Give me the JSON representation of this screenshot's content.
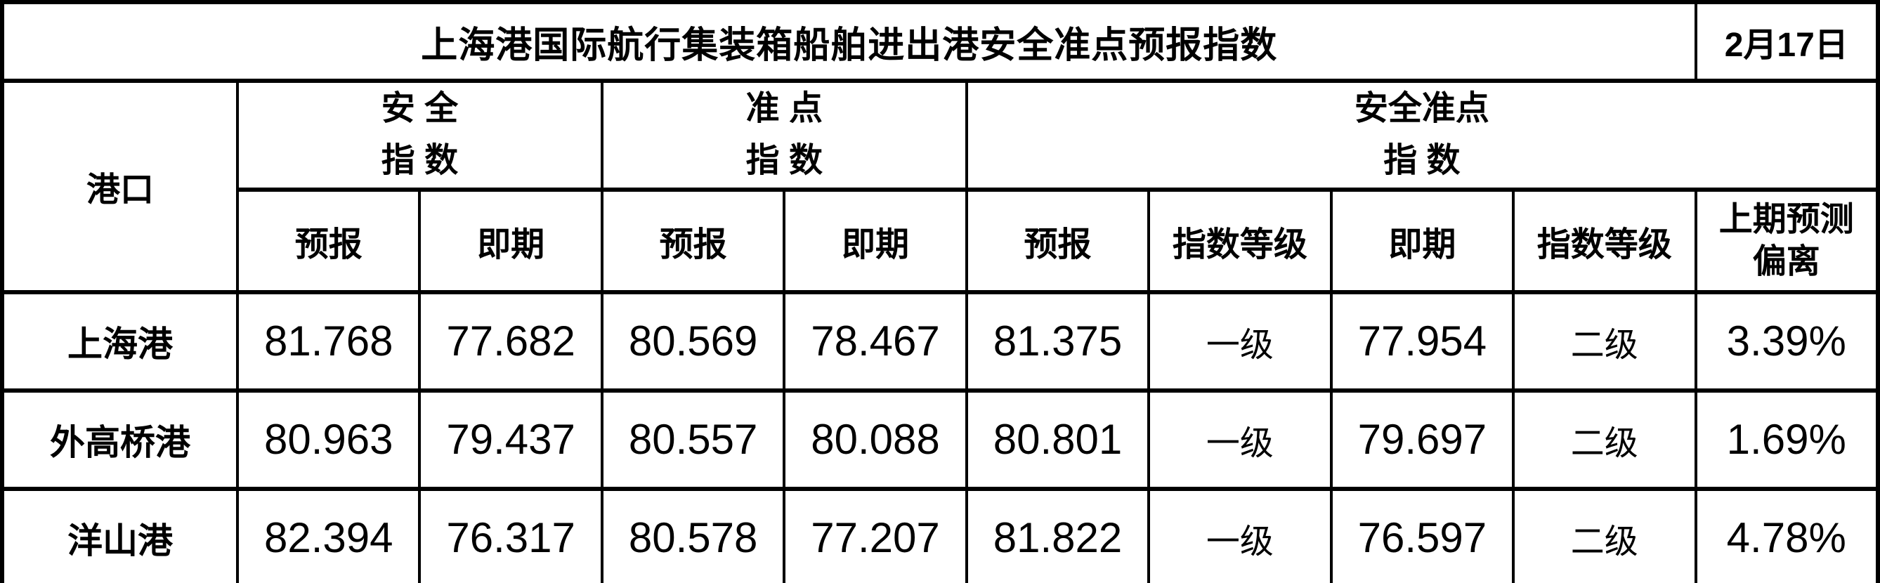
{
  "title": "上海港国际航行集装箱船舶进出港安全准点预报指数",
  "date": "2月17日",
  "headers": {
    "port": "港口",
    "group_safety": "安 全\n指 数",
    "group_punctuality": "准 点\n指 数",
    "group_safety_punctuality": "安全准点\n指 数",
    "sub": [
      "预报",
      "即期",
      "预报",
      "即期",
      "预报",
      "指数等级",
      "即期",
      "指数等级",
      "上期预测\n偏离"
    ]
  },
  "rows": [
    {
      "port": "上海港",
      "values": [
        "81.768",
        "77.682",
        "80.569",
        "78.467",
        "81.375",
        "一级",
        "77.954",
        "二级",
        "3.39%"
      ]
    },
    {
      "port": "外高桥港",
      "values": [
        "80.963",
        "79.437",
        "80.557",
        "80.088",
        "80.801",
        "一级",
        "79.697",
        "二级",
        "1.69%"
      ]
    },
    {
      "port": "洋山港",
      "values": [
        "82.394",
        "76.317",
        "80.578",
        "77.207",
        "81.822",
        "一级",
        "76.597",
        "二级",
        "4.78%"
      ]
    }
  ],
  "chart_data": {
    "type": "table",
    "title": "上海港国际航行集装箱船舶进出港安全准点预报指数",
    "date": "2月17日",
    "columns": [
      "港口",
      "安全指数-预报",
      "安全指数-即期",
      "准点指数-预报",
      "准点指数-即期",
      "安全准点指数-预报",
      "安全准点指数-指数等级",
      "安全准点指数-即期",
      "安全准点指数-指数等级",
      "上期预测偏离"
    ],
    "rows": [
      [
        "上海港",
        81.768,
        77.682,
        80.569,
        78.467,
        81.375,
        "一级",
        77.954,
        "二级",
        "3.39%"
      ],
      [
        "外高桥港",
        80.963,
        79.437,
        80.557,
        80.088,
        80.801,
        "一级",
        79.697,
        "二级",
        "1.69%"
      ],
      [
        "洋山港",
        82.394,
        76.317,
        80.578,
        77.207,
        81.822,
        "一级",
        76.597,
        "二级",
        "4.78%"
      ]
    ]
  }
}
